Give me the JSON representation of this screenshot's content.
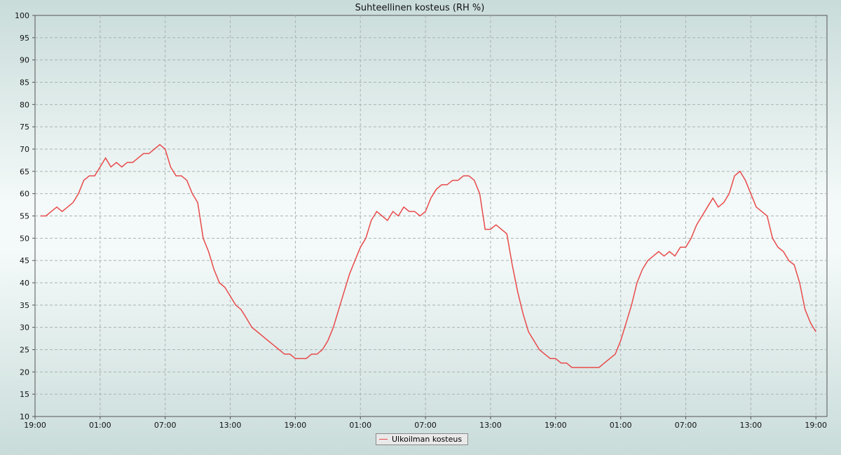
{
  "chart_data": {
    "type": "line",
    "title": "Suhteellinen kosteus (RH %)",
    "xlabel": "",
    "ylabel": "",
    "ylim": [
      10,
      100
    ],
    "y_ticks": [
      10,
      15,
      20,
      25,
      30,
      35,
      40,
      45,
      50,
      55,
      60,
      65,
      70,
      75,
      80,
      85,
      90,
      95,
      100
    ],
    "x_ticks": [
      "19:00",
      "01:00",
      "07:00",
      "13:00",
      "19:00",
      "01:00",
      "07:00",
      "13:00",
      "19:00",
      "01:00",
      "07:00",
      "13:00",
      "19:00"
    ],
    "x_unit": "hours since first tick (19:00), ticks every 6 h",
    "x_range": [
      0,
      73
    ],
    "grid": true,
    "legend_position": "bottom-center",
    "series": [
      {
        "name": "Ulkoilman kosteus",
        "color": "#e84a4a",
        "points": [
          [
            0.5,
            55
          ],
          [
            1,
            55
          ],
          [
            1.5,
            56
          ],
          [
            2,
            57
          ],
          [
            2.5,
            56
          ],
          [
            3,
            57
          ],
          [
            3.5,
            58
          ],
          [
            4,
            60
          ],
          [
            4.5,
            63
          ],
          [
            5,
            64
          ],
          [
            5.5,
            64
          ],
          [
            6,
            66
          ],
          [
            6.5,
            68
          ],
          [
            7,
            66
          ],
          [
            7.5,
            67
          ],
          [
            8,
            66
          ],
          [
            8.5,
            67
          ],
          [
            9,
            67
          ],
          [
            9.5,
            68
          ],
          [
            10,
            69
          ],
          [
            10.5,
            69
          ],
          [
            11,
            70
          ],
          [
            11.5,
            71
          ],
          [
            12,
            70
          ],
          [
            12.5,
            66
          ],
          [
            13,
            64
          ],
          [
            13.5,
            64
          ],
          [
            14,
            63
          ],
          [
            14.5,
            60
          ],
          [
            15,
            58
          ],
          [
            15.5,
            50
          ],
          [
            16,
            47
          ],
          [
            16.5,
            43
          ],
          [
            17,
            40
          ],
          [
            17.5,
            39
          ],
          [
            18,
            37
          ],
          [
            18.5,
            35
          ],
          [
            19,
            34
          ],
          [
            19.5,
            32
          ],
          [
            20,
            30
          ],
          [
            20.5,
            29
          ],
          [
            21,
            28
          ],
          [
            21.5,
            27
          ],
          [
            22,
            26
          ],
          [
            22.5,
            25
          ],
          [
            23,
            24
          ],
          [
            23.5,
            24
          ],
          [
            24,
            23
          ],
          [
            24.5,
            23
          ],
          [
            25,
            23
          ],
          [
            25.5,
            24
          ],
          [
            26,
            24
          ],
          [
            26.5,
            25
          ],
          [
            27,
            27
          ],
          [
            27.5,
            30
          ],
          [
            28,
            34
          ],
          [
            28.5,
            38
          ],
          [
            29,
            42
          ],
          [
            29.5,
            45
          ],
          [
            30,
            48
          ],
          [
            30.5,
            50
          ],
          [
            31,
            54
          ],
          [
            31.5,
            56
          ],
          [
            32,
            55
          ],
          [
            32.5,
            54
          ],
          [
            33,
            56
          ],
          [
            33.5,
            55
          ],
          [
            34,
            57
          ],
          [
            34.5,
            56
          ],
          [
            35,
            56
          ],
          [
            35.5,
            55
          ],
          [
            36,
            56
          ],
          [
            36.5,
            59
          ],
          [
            37,
            61
          ],
          [
            37.5,
            62
          ],
          [
            38,
            62
          ],
          [
            38.5,
            63
          ],
          [
            39,
            63
          ],
          [
            39.5,
            64
          ],
          [
            40,
            64
          ],
          [
            40.5,
            63
          ],
          [
            41,
            60
          ],
          [
            41.5,
            52
          ],
          [
            42,
            52
          ],
          [
            42.5,
            53
          ],
          [
            43,
            52
          ],
          [
            43.5,
            51
          ],
          [
            44,
            44
          ],
          [
            44.5,
            38
          ],
          [
            45,
            33
          ],
          [
            45.5,
            29
          ],
          [
            46,
            27
          ],
          [
            46.5,
            25
          ],
          [
            47,
            24
          ],
          [
            47.5,
            23
          ],
          [
            48,
            23
          ],
          [
            48.5,
            22
          ],
          [
            49,
            22
          ],
          [
            49.5,
            21
          ],
          [
            50,
            21
          ],
          [
            50.5,
            21
          ],
          [
            51,
            21
          ],
          [
            51.5,
            21
          ],
          [
            52,
            21
          ],
          [
            52.5,
            22
          ],
          [
            53,
            23
          ],
          [
            53.5,
            24
          ],
          [
            54,
            27
          ],
          [
            54.5,
            31
          ],
          [
            55,
            35
          ],
          [
            55.5,
            40
          ],
          [
            56,
            43
          ],
          [
            56.5,
            45
          ],
          [
            57,
            46
          ],
          [
            57.5,
            47
          ],
          [
            58,
            46
          ],
          [
            58.5,
            47
          ],
          [
            59,
            46
          ],
          [
            59.5,
            48
          ],
          [
            60,
            48
          ],
          [
            60.5,
            50
          ],
          [
            61,
            53
          ],
          [
            61.5,
            55
          ],
          [
            62,
            57
          ],
          [
            62.5,
            59
          ],
          [
            63,
            57
          ],
          [
            63.5,
            58
          ],
          [
            64,
            60
          ],
          [
            64.5,
            64
          ],
          [
            65,
            65
          ],
          [
            65.5,
            63
          ],
          [
            66,
            60
          ],
          [
            66.5,
            57
          ],
          [
            67,
            56
          ],
          [
            67.5,
            55
          ],
          [
            68,
            50
          ],
          [
            68.5,
            48
          ],
          [
            69,
            47
          ],
          [
            69.5,
            45
          ],
          [
            70,
            44
          ],
          [
            70.5,
            40
          ],
          [
            71,
            34
          ],
          [
            71.5,
            31
          ],
          [
            72,
            29
          ]
        ]
      }
    ]
  },
  "legend": {
    "label": "Ulkoilman kosteus"
  }
}
